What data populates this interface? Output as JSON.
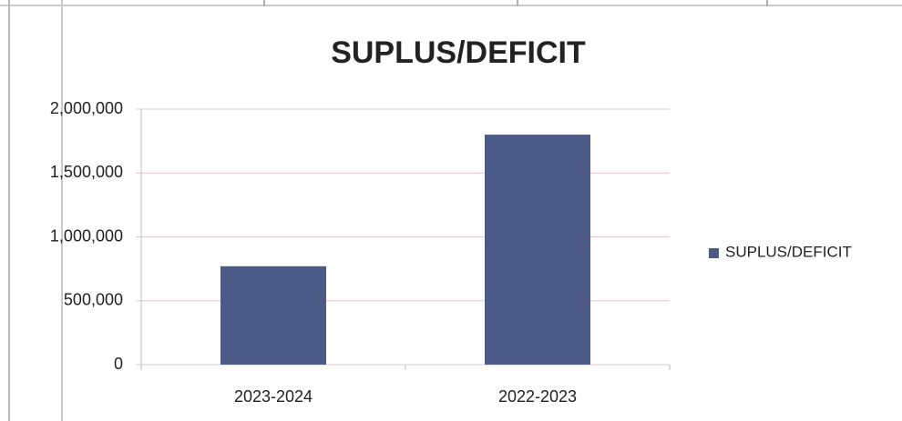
{
  "chart_data": {
    "type": "bar",
    "title": "SUPLUS/DEFICIT",
    "categories": [
      "2023-2024",
      "2022-2023"
    ],
    "series": [
      {
        "name": "SUPLUS/DEFICIT",
        "color": "#4b5a86",
        "values": [
          770000,
          1800000
        ]
      }
    ],
    "ylim": [
      0,
      2000000
    ],
    "yticks": [
      0,
      {
        "value": 500000,
        "label": "500,000"
      },
      {
        "value": 1000000,
        "label": "1,000,000"
      },
      {
        "value": 1500000,
        "label": "1,500,000"
      },
      {
        "value": 2000000,
        "label": "2,000,000"
      }
    ],
    "grid": true,
    "legend": "right"
  }
}
